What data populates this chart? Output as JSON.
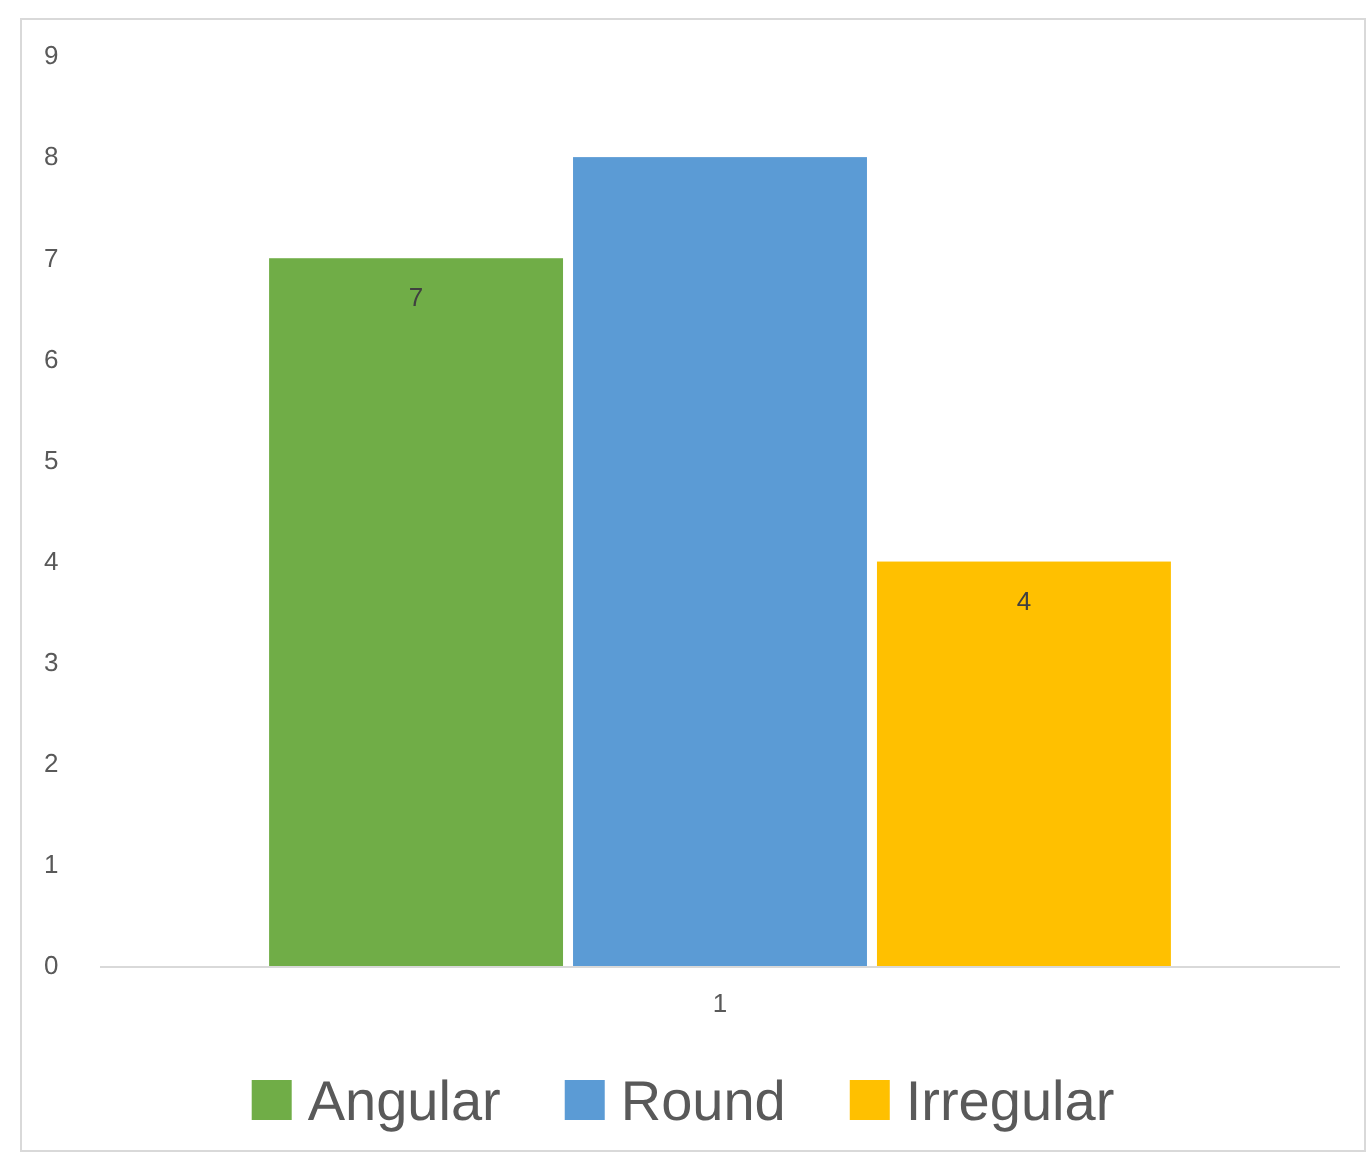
{
  "chart_data": {
    "type": "bar",
    "categories": [
      "1"
    ],
    "series": [
      {
        "name": "Angular",
        "color": "#70ad47",
        "values": [
          7
        ],
        "value_labels": [
          "7"
        ]
      },
      {
        "name": "Round",
        "color": "#5b9bd5",
        "values": [
          8
        ],
        "value_labels": [
          null
        ]
      },
      {
        "name": "Irregular",
        "color": "#ffc000",
        "values": [
          4
        ],
        "value_labels": [
          "4"
        ]
      }
    ],
    "ylim": [
      0,
      9
    ],
    "yticks": [
      0,
      1,
      2,
      3,
      4,
      5,
      6,
      7,
      8,
      9
    ],
    "grid": false,
    "legend": "bottom"
  }
}
